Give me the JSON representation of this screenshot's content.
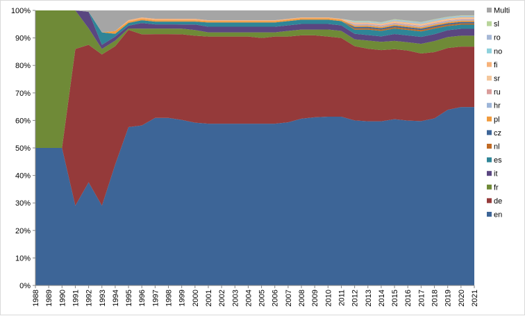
{
  "chart_data": {
    "type": "area",
    "stacked": true,
    "normalized": true,
    "title": "",
    "xlabel": "",
    "ylabel": "",
    "ylim": [
      0,
      100
    ],
    "yticks": [
      "0%",
      "10%",
      "20%",
      "30%",
      "40%",
      "50%",
      "60%",
      "70%",
      "80%",
      "90%",
      "100%"
    ],
    "categories": [
      "1988",
      "1989",
      "1990",
      "1991",
      "1992",
      "1993",
      "1994",
      "1995",
      "1996",
      "1997",
      "1998",
      "1999",
      "2000",
      "2001",
      "2002",
      "2003",
      "2004",
      "2005",
      "2006",
      "2007",
      "2008",
      "2009",
      "2010",
      "2011",
      "2012",
      "2013",
      "2014",
      "2015",
      "2016",
      "2017",
      "2018",
      "2019",
      "2020",
      "2021"
    ],
    "legend_position": "right",
    "series": [
      {
        "name": "en",
        "color": "#3d6597",
        "values": [
          50,
          50,
          50,
          29,
          37.5,
          29,
          44,
          57,
          57,
          60,
          60,
          59,
          58,
          57.5,
          57.5,
          57.5,
          57.5,
          57.5,
          57.5,
          58,
          59,
          59.5,
          60,
          60,
          60,
          60,
          60,
          60.5,
          60,
          59.5,
          60.5,
          64,
          65,
          65
        ]
      },
      {
        "name": "de",
        "color": "#953a3a",
        "values": [
          0,
          0,
          0,
          57,
          50,
          55,
          43,
          35,
          32.5,
          30,
          30,
          30.5,
          31,
          31,
          31,
          31,
          31,
          30.5,
          31,
          30.5,
          29.5,
          29,
          28.5,
          28,
          27,
          26.5,
          26,
          25.5,
          25.5,
          24.5,
          24,
          22.5,
          22,
          22
        ]
      },
      {
        "name": "fr",
        "color": "#6f8a37",
        "values": [
          50,
          50,
          50,
          14,
          6,
          2,
          2,
          0.5,
          2,
          2,
          2,
          2,
          2,
          1.5,
          1.5,
          1.5,
          1.5,
          2,
          1.5,
          2,
          2,
          2,
          2.5,
          2.5,
          2.5,
          3,
          3,
          3,
          3,
          3.5,
          4,
          4,
          4,
          4
        ]
      },
      {
        "name": "it",
        "color": "#5a4680",
        "values": [
          0,
          0,
          0,
          0,
          6,
          1.5,
          1.5,
          1,
          2,
          1.5,
          1.5,
          1.5,
          2,
          2,
          2,
          2,
          2,
          2,
          2,
          2,
          2,
          2,
          2,
          2,
          2,
          2,
          2,
          2.5,
          2.5,
          2.5,
          2.5,
          2.5,
          2.5,
          2.5
        ]
      },
      {
        "name": "es",
        "color": "#2f8597",
        "values": [
          0,
          0,
          0,
          0,
          0,
          4.5,
          1,
          1,
          1,
          1,
          1,
          1,
          1,
          1.5,
          1.5,
          1.5,
          1.5,
          1.5,
          1.5,
          1.5,
          1.5,
          1.5,
          1.5,
          1.5,
          1.5,
          2,
          2,
          2,
          2,
          2,
          2,
          1.5,
          1.5,
          1.5
        ]
      },
      {
        "name": "nl",
        "color": "#c06a24",
        "values": [
          0,
          0,
          0,
          0,
          0,
          0,
          0,
          0,
          0,
          0,
          0,
          0,
          0,
          0,
          0,
          0,
          0,
          0,
          0,
          0,
          0,
          0,
          0,
          0,
          0.5,
          0.5,
          0.5,
          0.5,
          0.5,
          0.5,
          0.5,
          0.5,
          0.5,
          0.5
        ]
      },
      {
        "name": "cz",
        "color": "#3d6597",
        "values": [
          0,
          0,
          0,
          0,
          0,
          0,
          0,
          0,
          0,
          0,
          0,
          0,
          0,
          0,
          0,
          0,
          0,
          0,
          0,
          0,
          0,
          0,
          0,
          0,
          0.5,
          0.5,
          0.5,
          0.5,
          0.5,
          0.5,
          0.5,
          0.5,
          0.5,
          0.5
        ]
      },
      {
        "name": "pl",
        "color": "#f09a3c",
        "values": [
          0,
          0,
          0,
          0,
          0,
          0,
          1,
          0.5,
          0.5,
          0.5,
          0.5,
          0.5,
          0.5,
          0.5,
          0.5,
          0.5,
          0.5,
          0.5,
          0.5,
          0.5,
          0.5,
          0.5,
          0.5,
          0.5,
          0.5,
          0.5,
          0.5,
          0.5,
          0.5,
          0.5,
          0.5,
          0.5,
          0.5,
          0.5
        ]
      },
      {
        "name": "hr",
        "color": "#9db5d8",
        "values": [
          0,
          0,
          0,
          0,
          0,
          0,
          0,
          0,
          0,
          0,
          0,
          0,
          0,
          0,
          0,
          0,
          0,
          0,
          0,
          0,
          0,
          0,
          0,
          0,
          0.3,
          0.3,
          0.3,
          0.3,
          0.3,
          0.3,
          0.3,
          0.3,
          0.3,
          0.3
        ]
      },
      {
        "name": "ru",
        "color": "#d99c9a",
        "values": [
          0,
          0,
          0,
          0,
          0,
          0,
          0,
          0,
          0,
          0,
          0,
          0,
          0,
          0,
          0,
          0,
          0,
          0,
          0,
          0,
          0,
          0,
          0,
          0,
          0.3,
          0.3,
          0.3,
          0.3,
          0.3,
          0.3,
          0.3,
          0.3,
          0.3,
          0.3
        ]
      },
      {
        "name": "sr",
        "color": "#f4c79c",
        "values": [
          0,
          0,
          0,
          0,
          0,
          0,
          0,
          0,
          0,
          0,
          0,
          0,
          0,
          0,
          0,
          0,
          0,
          0,
          0,
          0,
          0,
          0,
          0,
          0,
          0.2,
          0.2,
          0.2,
          0.3,
          0.3,
          0.3,
          0.3,
          0.3,
          0.3,
          0.3
        ]
      },
      {
        "name": "fi",
        "color": "#f7b27a",
        "values": [
          0,
          0,
          0,
          0,
          0,
          0,
          0,
          0.5,
          0.5,
          0.5,
          0.5,
          0.5,
          0.5,
          0.3,
          0.3,
          0.3,
          0.3,
          0.3,
          0.3,
          0.3,
          0.3,
          0.3,
          0.3,
          0.3,
          0.3,
          0.3,
          0.3,
          0.3,
          0.3,
          0.3,
          0.3,
          0.3,
          0.3,
          0.3
        ]
      },
      {
        "name": "no",
        "color": "#8ed1dc",
        "values": [
          0,
          0,
          0,
          0,
          0,
          0,
          0,
          0,
          0,
          0,
          0,
          0,
          0,
          0,
          0,
          0,
          0,
          0,
          0,
          0,
          0,
          0,
          0,
          0,
          0.2,
          0.2,
          0.2,
          0.2,
          0.2,
          0.2,
          0.2,
          0.2,
          0.2,
          0.2
        ]
      },
      {
        "name": "ro",
        "color": "#a6b8d6",
        "values": [
          0,
          0,
          0,
          0,
          0,
          0,
          0,
          0,
          0,
          0,
          0,
          0,
          0,
          0,
          0,
          0,
          0,
          0,
          0,
          0,
          0,
          0,
          0,
          0,
          0.2,
          0.2,
          0.2,
          0.3,
          0.3,
          0.3,
          0.3,
          0.3,
          0.3,
          0.3
        ]
      },
      {
        "name": "sl",
        "color": "#b8d49a",
        "values": [
          0,
          0,
          0,
          0,
          0,
          0,
          0,
          0,
          0,
          0,
          0,
          0,
          0,
          0,
          0,
          0,
          0,
          0,
          0,
          0,
          0,
          0,
          0,
          0,
          0.2,
          0.2,
          0.2,
          0.2,
          0.2,
          0.2,
          0.2,
          0.2,
          0.2,
          0.2
        ]
      },
      {
        "name": "Multi",
        "color": "#a5a5a5",
        "values": [
          0,
          0,
          0,
          0,
          0.5,
          8,
          7.5,
          3.5,
          2.5,
          3,
          3,
          3,
          3,
          3.5,
          3.5,
          3.5,
          3.5,
          3.5,
          3.5,
          3,
          2.5,
          2.5,
          2.5,
          3,
          3.8,
          3.8,
          4.3,
          3.2,
          3.7,
          4.2,
          3.2,
          2.3,
          1.8,
          1.8
        ]
      }
    ]
  }
}
